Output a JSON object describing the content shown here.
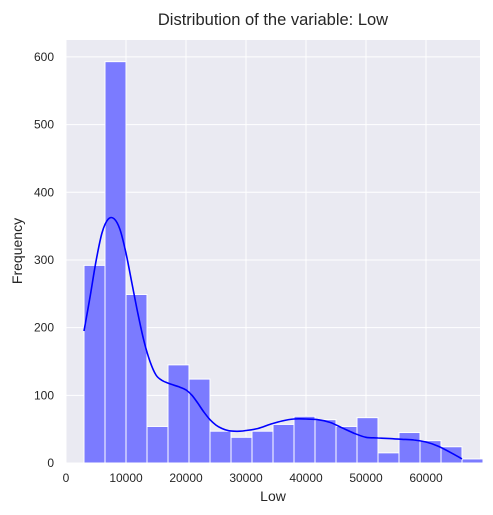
{
  "chart_data": {
    "type": "bar",
    "title": "Distribution of the variable: Low",
    "xlabel": "Low",
    "ylabel": "Frequency",
    "xlim": [
      0,
      69000
    ],
    "ylim": [
      0,
      625
    ],
    "x_ticks": [
      0,
      10000,
      20000,
      30000,
      40000,
      50000,
      60000
    ],
    "y_ticks": [
      0,
      100,
      200,
      300,
      400,
      500,
      600
    ],
    "grid": true,
    "colors": {
      "background": "#eaeaf2",
      "grid": "#ffffff",
      "bar_fill": "#7b7bff",
      "bar_edge": "#ffffff",
      "kde_line": "#0000ff",
      "text": "#262626"
    },
    "bins": {
      "start": 3000,
      "width": 3500,
      "counts": [
        292,
        593,
        249,
        54,
        145,
        124,
        47,
        38,
        47,
        57,
        69,
        64,
        54,
        67,
        15,
        45,
        33,
        24,
        6
      ]
    },
    "kde": {
      "x": [
        3000,
        4000,
        5000,
        6000,
        7000,
        8000,
        9000,
        10000,
        11000,
        12000,
        13000,
        14000,
        15000,
        16000,
        17000,
        18000,
        19000,
        20000,
        21000,
        22000,
        23000,
        24000,
        25000,
        26000,
        27000,
        28000,
        29000,
        30000,
        32000,
        34000,
        36000,
        38000,
        40000,
        42000,
        44000,
        46000,
        48000,
        50000,
        52000,
        54000,
        56000,
        58000,
        60000,
        62000,
        64000,
        66000
      ],
      "y": [
        195,
        245,
        298,
        340,
        360,
        361,
        345,
        310,
        265,
        220,
        180,
        150,
        130,
        122,
        118,
        115,
        112,
        108,
        100,
        88,
        75,
        64,
        56,
        51,
        48,
        47,
        47,
        48,
        51,
        57,
        62,
        65,
        65,
        64,
        60,
        52,
        44,
        38,
        37,
        36,
        35,
        34,
        31,
        25,
        16,
        6
      ]
    }
  }
}
